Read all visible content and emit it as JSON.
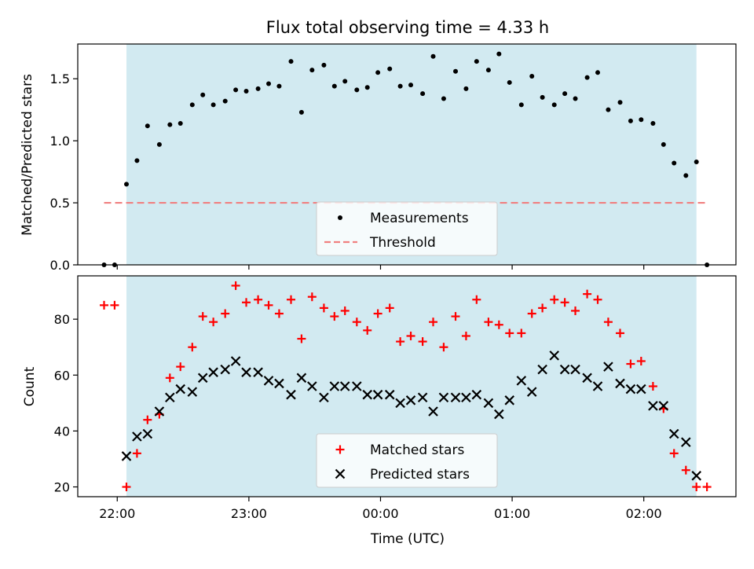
{
  "chart_data": {
    "title": "Flux total observing time = 4.33 h",
    "xlabel": "Time (UTC)",
    "x_unit": "hours (UTC)",
    "x_ticks": [
      {
        "value": 22.0,
        "label": "22:00"
      },
      {
        "value": 23.0,
        "label": "23:00"
      },
      {
        "value": 24.0,
        "label": "00:00"
      },
      {
        "value": 25.0,
        "label": "01:00"
      },
      {
        "value": 26.0,
        "label": "02:00"
      }
    ],
    "xlim": [
      21.7,
      26.7
    ],
    "shaded_region": {
      "x_start": 22.07,
      "x_end": 26.4,
      "color": "#add8e6"
    },
    "panels": [
      {
        "type": "scatter",
        "ylabel": "Matched/Predicted stars",
        "ylim": [
          0,
          1.78
        ],
        "y_ticks": [
          {
            "value": 0,
            "label": "0.0"
          },
          {
            "value": 0.5,
            "label": "0.5"
          },
          {
            "value": 1.0,
            "label": "1.0"
          },
          {
            "value": 1.5,
            "label": "1.5"
          }
        ],
        "series": [
          {
            "name": "Measurements",
            "marker": "dot",
            "color": "#000000",
            "points": [
              [
                21.9,
                0.0
              ],
              [
                21.98,
                0.0
              ],
              [
                22.07,
                0.65
              ],
              [
                22.15,
                0.84
              ],
              [
                22.23,
                1.12
              ],
              [
                22.32,
                0.97
              ],
              [
                22.4,
                1.13
              ],
              [
                22.48,
                1.14
              ],
              [
                22.57,
                1.29
              ],
              [
                22.65,
                1.37
              ],
              [
                22.73,
                1.29
              ],
              [
                22.82,
                1.32
              ],
              [
                22.9,
                1.41
              ],
              [
                22.98,
                1.4
              ],
              [
                23.07,
                1.42
              ],
              [
                23.15,
                1.46
              ],
              [
                23.23,
                1.44
              ],
              [
                23.32,
                1.64
              ],
              [
                23.4,
                1.23
              ],
              [
                23.48,
                1.57
              ],
              [
                23.57,
                1.61
              ],
              [
                23.65,
                1.44
              ],
              [
                23.73,
                1.48
              ],
              [
                23.82,
                1.41
              ],
              [
                23.9,
                1.43
              ],
              [
                23.98,
                1.55
              ],
              [
                24.07,
                1.58
              ],
              [
                24.15,
                1.44
              ],
              [
                24.23,
                1.45
              ],
              [
                24.32,
                1.38
              ],
              [
                24.4,
                1.68
              ],
              [
                24.48,
                1.34
              ],
              [
                24.57,
                1.56
              ],
              [
                24.65,
                1.42
              ],
              [
                24.73,
                1.64
              ],
              [
                24.82,
                1.57
              ],
              [
                24.9,
                1.7
              ],
              [
                24.98,
                1.47
              ],
              [
                25.07,
                1.29
              ],
              [
                25.15,
                1.52
              ],
              [
                25.23,
                1.35
              ],
              [
                25.32,
                1.29
              ],
              [
                25.4,
                1.38
              ],
              [
                25.48,
                1.34
              ],
              [
                25.57,
                1.51
              ],
              [
                25.65,
                1.55
              ],
              [
                25.73,
                1.25
              ],
              [
                25.82,
                1.31
              ],
              [
                25.9,
                1.16
              ],
              [
                25.98,
                1.17
              ],
              [
                26.07,
                1.14
              ],
              [
                26.15,
                0.97
              ],
              [
                26.23,
                0.82
              ],
              [
                26.32,
                0.72
              ],
              [
                26.4,
                0.83
              ],
              [
                26.48,
                0.0
              ]
            ]
          },
          {
            "name": "Threshold",
            "marker": "dashed-line",
            "color": "#f08080",
            "value": 0.5,
            "x_range": [
              21.9,
              26.48
            ]
          }
        ],
        "legend": "bottom-center"
      },
      {
        "type": "scatter",
        "ylabel": "Count",
        "ylim": [
          16.5,
          95.5
        ],
        "y_ticks": [
          {
            "value": 20,
            "label": "20"
          },
          {
            "value": 40,
            "label": "40"
          },
          {
            "value": 60,
            "label": "60"
          },
          {
            "value": 80,
            "label": "80"
          }
        ],
        "series": [
          {
            "name": "Matched stars",
            "marker": "plus",
            "color": "#ff0000",
            "points": [
              [
                21.9,
                85
              ],
              [
                21.98,
                85
              ],
              [
                22.07,
                20
              ],
              [
                22.15,
                32
              ],
              [
                22.23,
                44
              ],
              [
                22.32,
                46
              ],
              [
                22.4,
                59
              ],
              [
                22.48,
                63
              ],
              [
                22.57,
                70
              ],
              [
                22.65,
                81
              ],
              [
                22.73,
                79
              ],
              [
                22.82,
                82
              ],
              [
                22.9,
                92
              ],
              [
                22.98,
                86
              ],
              [
                23.07,
                87
              ],
              [
                23.15,
                85
              ],
              [
                23.23,
                82
              ],
              [
                23.32,
                87
              ],
              [
                23.4,
                73
              ],
              [
                23.48,
                88
              ],
              [
                23.57,
                84
              ],
              [
                23.65,
                81
              ],
              [
                23.73,
                83
              ],
              [
                23.82,
                79
              ],
              [
                23.9,
                76
              ],
              [
                23.98,
                82
              ],
              [
                24.07,
                84
              ],
              [
                24.15,
                72
              ],
              [
                24.23,
                74
              ],
              [
                24.32,
                72
              ],
              [
                24.4,
                79
              ],
              [
                24.48,
                70
              ],
              [
                24.57,
                81
              ],
              [
                24.65,
                74
              ],
              [
                24.73,
                87
              ],
              [
                24.82,
                79
              ],
              [
                24.9,
                78
              ],
              [
                24.98,
                75
              ],
              [
                25.07,
                75
              ],
              [
                25.15,
                82
              ],
              [
                25.23,
                84
              ],
              [
                25.32,
                87
              ],
              [
                25.4,
                86
              ],
              [
                25.48,
                83
              ],
              [
                25.57,
                89
              ],
              [
                25.65,
                87
              ],
              [
                25.73,
                79
              ],
              [
                25.82,
                75
              ],
              [
                25.9,
                64
              ],
              [
                25.98,
                65
              ],
              [
                26.07,
                56
              ],
              [
                26.15,
                48
              ],
              [
                26.23,
                32
              ],
              [
                26.32,
                26
              ],
              [
                26.4,
                20
              ],
              [
                26.48,
                20
              ]
            ]
          },
          {
            "name": "Predicted stars",
            "marker": "x",
            "color": "#000000",
            "points": [
              [
                22.07,
                31
              ],
              [
                22.15,
                38
              ],
              [
                22.23,
                39
              ],
              [
                22.32,
                47
              ],
              [
                22.4,
                52
              ],
              [
                22.48,
                55
              ],
              [
                22.57,
                54
              ],
              [
                22.65,
                59
              ],
              [
                22.73,
                61
              ],
              [
                22.82,
                62
              ],
              [
                22.9,
                65
              ],
              [
                22.98,
                61
              ],
              [
                23.07,
                61
              ],
              [
                23.15,
                58
              ],
              [
                23.23,
                57
              ],
              [
                23.32,
                53
              ],
              [
                23.4,
                59
              ],
              [
                23.48,
                56
              ],
              [
                23.57,
                52
              ],
              [
                23.65,
                56
              ],
              [
                23.73,
                56
              ],
              [
                23.82,
                56
              ],
              [
                23.9,
                53
              ],
              [
                23.98,
                53
              ],
              [
                24.07,
                53
              ],
              [
                24.15,
                50
              ],
              [
                24.23,
                51
              ],
              [
                24.32,
                52
              ],
              [
                24.4,
                47
              ],
              [
                24.48,
                52
              ],
              [
                24.57,
                52
              ],
              [
                24.65,
                52
              ],
              [
                24.73,
                53
              ],
              [
                24.82,
                50
              ],
              [
                24.9,
                46
              ],
              [
                24.98,
                51
              ],
              [
                25.07,
                58
              ],
              [
                25.15,
                54
              ],
              [
                25.23,
                62
              ],
              [
                25.32,
                67
              ],
              [
                25.4,
                62
              ],
              [
                25.48,
                62
              ],
              [
                25.57,
                59
              ],
              [
                25.65,
                56
              ],
              [
                25.73,
                63
              ],
              [
                25.82,
                57
              ],
              [
                25.9,
                55
              ],
              [
                25.98,
                55
              ],
              [
                26.07,
                49
              ],
              [
                26.15,
                49
              ],
              [
                26.23,
                39
              ],
              [
                26.32,
                36
              ],
              [
                26.4,
                24
              ]
            ]
          }
        ],
        "legend": "bottom-center"
      }
    ]
  }
}
